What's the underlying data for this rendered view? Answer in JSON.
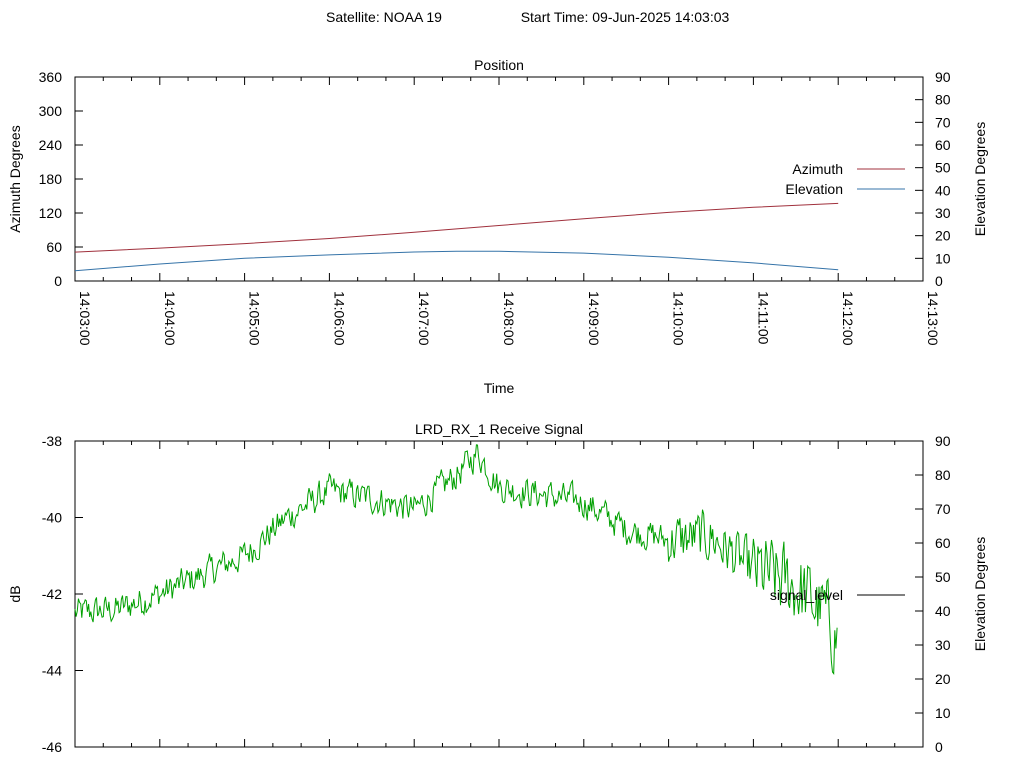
{
  "header": {
    "satellite": "Satellite: NOAA 19",
    "start_time": "Start Time: 09-Jun-2025 14:03:03"
  },
  "chart_data": [
    {
      "type": "line",
      "title": "Position",
      "xlabel": "Time",
      "ylabel": "Azimuth Degrees",
      "y2label": "Elevation Degrees",
      "xlim": [
        "14:03:00",
        "14:13:00"
      ],
      "x_ticks": [
        "14:03:00",
        "14:04:00",
        "14:05:00",
        "14:06:00",
        "14:07:00",
        "14:08:00",
        "14:09:00",
        "14:10:00",
        "14:11:00",
        "14:12:00",
        "14:13:00"
      ],
      "ylim": [
        0,
        360
      ],
      "y_ticks": [
        0,
        60,
        120,
        180,
        240,
        300,
        360
      ],
      "y2lim": [
        0,
        90
      ],
      "y2_ticks": [
        0,
        10,
        20,
        30,
        40,
        50,
        60,
        70,
        80,
        90
      ],
      "legend_position": "right",
      "series": [
        {
          "name": "Azimuth",
          "axis": "y",
          "color": "#a0303c",
          "x": [
            "14:03:00",
            "14:04:00",
            "14:05:00",
            "14:06:00",
            "14:07:00",
            "14:08:00",
            "14:09:00",
            "14:10:00",
            "14:11:00",
            "14:12:00"
          ],
          "values": [
            51,
            58,
            66,
            75,
            86,
            98,
            110,
            121,
            130,
            137
          ]
        },
        {
          "name": "Elevation",
          "axis": "y2",
          "color": "#3573a8",
          "x": [
            "14:03:00",
            "14:04:00",
            "14:05:00",
            "14:06:00",
            "14:07:00",
            "14:07:30",
            "14:08:00",
            "14:09:00",
            "14:10:00",
            "14:11:00",
            "14:12:00"
          ],
          "values": [
            4.5,
            7.5,
            10,
            11.5,
            12.8,
            13.1,
            13.1,
            12.3,
            10.5,
            8,
            5
          ]
        }
      ]
    },
    {
      "type": "line",
      "title": "LRD_RX_1 Receive Signal",
      "ylabel": "dB",
      "y2label": "Elevation Degrees",
      "xlim": [
        "14:03:00",
        "14:13:00"
      ],
      "ylim": [
        -46,
        -38
      ],
      "y_ticks": [
        -46,
        -44,
        -42,
        -40,
        -38
      ],
      "y2lim": [
        0,
        90
      ],
      "y2_ticks": [
        0,
        10,
        20,
        30,
        40,
        50,
        60,
        70,
        80,
        90
      ],
      "legend_position": "right",
      "legend_entries": [
        {
          "name": "signal_level",
          "color": "#000000"
        }
      ],
      "series": [
        {
          "name": "signal_level",
          "color": "#00a000",
          "x": [
            "14:03:00",
            "14:03:30",
            "14:04:00",
            "14:04:30",
            "14:05:00",
            "14:05:30",
            "14:06:00",
            "14:06:30",
            "14:07:00",
            "14:07:30",
            "14:07:45",
            "14:08:00",
            "14:08:30",
            "14:09:00",
            "14:09:30",
            "14:10:00",
            "14:10:30",
            "14:11:00",
            "14:11:30",
            "14:11:50",
            "14:12:00"
          ],
          "values": [
            -42.5,
            -42.4,
            -42.0,
            -41.5,
            -41.0,
            -40.0,
            -39.3,
            -39.5,
            -39.8,
            -38.9,
            -38.3,
            -39.2,
            -39.4,
            -39.6,
            -40.3,
            -40.6,
            -40.5,
            -41.4,
            -41.8,
            -42.5,
            -43.2
          ]
        }
      ]
    }
  ]
}
